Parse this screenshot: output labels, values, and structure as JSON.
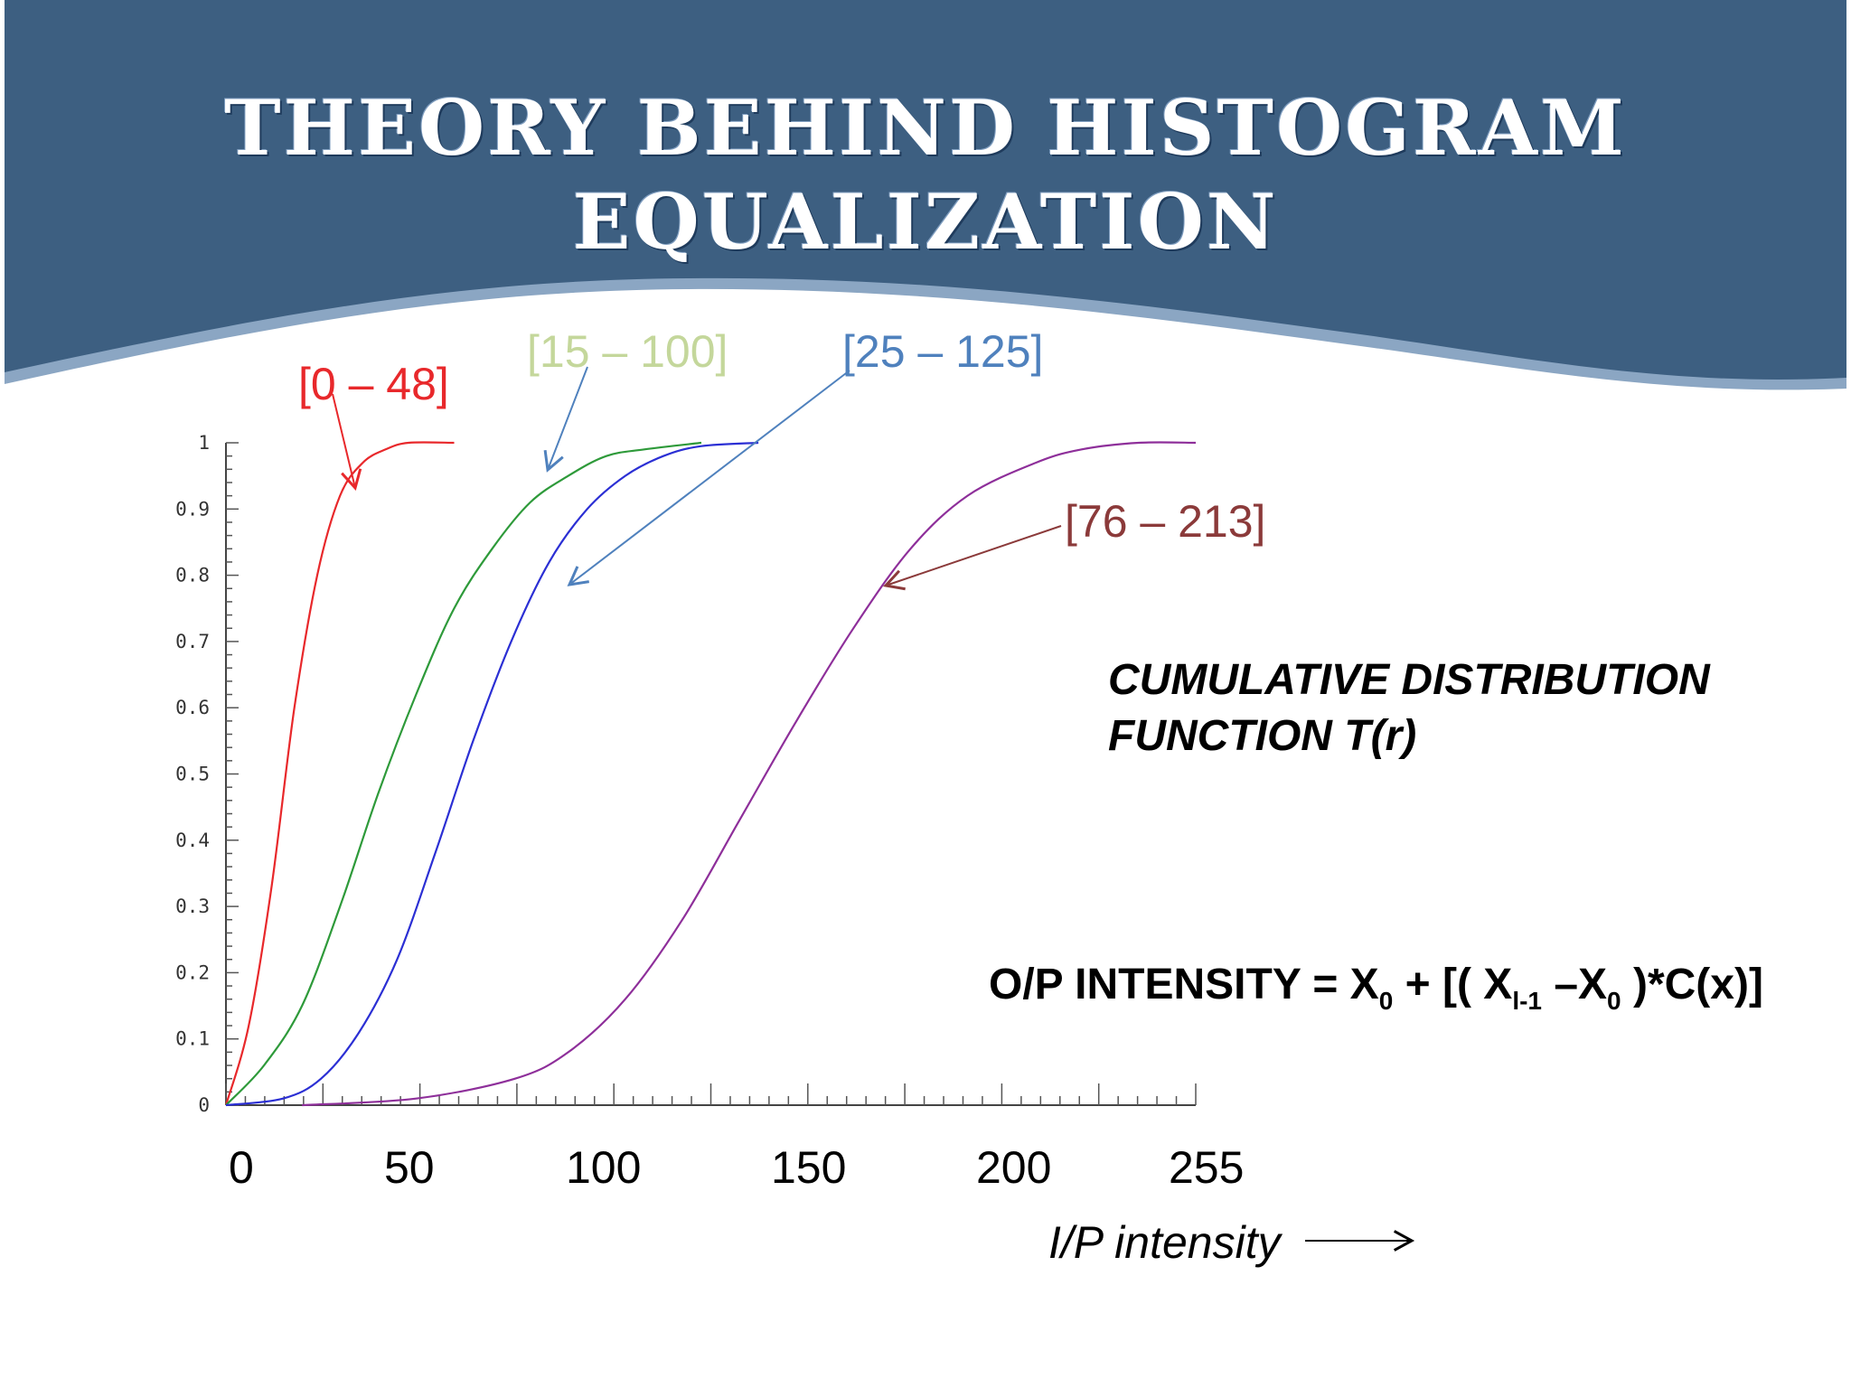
{
  "slide": {
    "title_line1": "THEORY BEHIND HISTOGRAM",
    "title_line2": "EQUALIZATION",
    "header_color": "#3d5f81"
  },
  "annotations": {
    "cdf_line1": "CUMULATIVE DISTRIBUTION",
    "cdf_line2": "FUNCTION T(r)",
    "formula": {
      "a": "O/P INTENSITY = X",
      "sub1": "0",
      "b": " + [( X",
      "sub2": "l-1",
      "c": " –X",
      "sub3": "0",
      "d": " )*C(x)]"
    }
  },
  "chart_data": {
    "type": "line",
    "title": "",
    "xlabel": "I/P intensity",
    "ylabel": "",
    "xlim": [
      0,
      255
    ],
    "ylim": [
      0,
      1
    ],
    "x_tick_labels": [
      "0",
      "50",
      "100",
      "150",
      "200",
      "255"
    ],
    "y_ticks": [
      "0",
      "0.1",
      "0.2",
      "0.3",
      "0.4",
      "0.5",
      "0.6",
      "0.7",
      "0.8",
      "0.9",
      "1"
    ],
    "series": [
      {
        "name": "[0 – 48]",
        "color": "#e8282b",
        "label_color": "#e8282b",
        "x": [
          0,
          6,
          12,
          18,
          24,
          30,
          36,
          42,
          48,
          60
        ],
        "y": [
          0.0,
          0.12,
          0.33,
          0.6,
          0.8,
          0.92,
          0.97,
          0.99,
          1.0,
          1.0
        ]
      },
      {
        "name": "[15 – 100]",
        "color": "#2e9a3a",
        "label_color": "#c4d79b",
        "x": [
          0,
          10,
          20,
          30,
          40,
          50,
          60,
          70,
          80,
          90,
          100,
          110,
          125
        ],
        "y": [
          0.0,
          0.06,
          0.15,
          0.3,
          0.47,
          0.62,
          0.75,
          0.84,
          0.91,
          0.95,
          0.98,
          0.99,
          1.0
        ]
      },
      {
        "name": "[25 – 125]",
        "color": "#2b2fd4",
        "label_color": "#4f81bd",
        "x": [
          0,
          15,
          25,
          35,
          45,
          55,
          65,
          75,
          85,
          95,
          105,
          115,
          125,
          140
        ],
        "y": [
          0.0,
          0.01,
          0.04,
          0.11,
          0.22,
          0.38,
          0.55,
          0.7,
          0.82,
          0.9,
          0.95,
          0.98,
          0.995,
          1.0
        ]
      },
      {
        "name": "[76 – 213]",
        "color": "#8e2f9a",
        "label_color": "#8b3a3a",
        "x": [
          20,
          50,
          76,
          90,
          105,
          120,
          135,
          150,
          165,
          180,
          195,
          213,
          225,
          240,
          255
        ],
        "y": [
          0.0,
          0.01,
          0.04,
          0.08,
          0.16,
          0.28,
          0.43,
          0.58,
          0.72,
          0.84,
          0.92,
          0.97,
          0.99,
          1.0,
          1.0
        ]
      }
    ],
    "legend": "arrow-labels",
    "grid": false
  }
}
